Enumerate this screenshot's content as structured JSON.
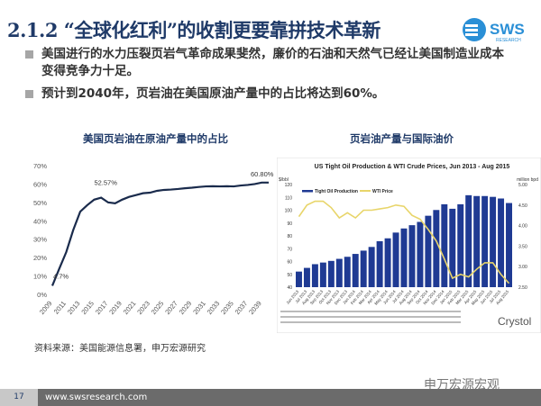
{
  "header": {
    "title": "2.1.2 “全球化红利”的收割更要靠拼技术革新",
    "logo_text": "SWS",
    "logo_sub": "RESEARCH"
  },
  "bullets": [
    "美国进行的水力压裂页岩气革命成果斐然，廉价的石油和天然气已经让美国制造业成本变得竞争力十足。",
    "预计到2040年，页岩油在美国原油产量中的占比将达到60%。"
  ],
  "chart_data": [
    {
      "type": "line",
      "title": "美国页岩油在原油产量中的占比",
      "xlabel": "",
      "ylabel": "",
      "ylim": [
        0,
        70
      ],
      "yticks": [
        "0%",
        "10%",
        "20%",
        "30%",
        "40%",
        "50%",
        "60%",
        "70%"
      ],
      "xticks": [
        "2009",
        "2011",
        "2013",
        "2015",
        "2017",
        "2019",
        "2021",
        "2023",
        "2025",
        "2027",
        "2029",
        "2031",
        "2033",
        "2035",
        "2037",
        "2039"
      ],
      "x": [
        2009,
        2010,
        2011,
        2012,
        2013,
        2014,
        2015,
        2016,
        2017,
        2018,
        2019,
        2020,
        2021,
        2022,
        2023,
        2024,
        2025,
        2026,
        2027,
        2028,
        2029,
        2030,
        2031,
        2032,
        2033,
        2034,
        2035,
        2036,
        2037,
        2038,
        2039,
        2040
      ],
      "values": [
        4.7,
        14,
        23,
        35,
        45,
        48.5,
        51.5,
        52.57,
        50,
        49.5,
        51.5,
        53,
        54,
        55,
        55.3,
        56.3,
        56.8,
        57,
        57.3,
        57.7,
        58,
        58.4,
        58.7,
        58.8,
        58.7,
        58.8,
        58.7,
        59.2,
        59.5,
        60,
        60.8,
        60.8
      ],
      "annotations": [
        "4.7%",
        "52.57%",
        "60.80%"
      ],
      "color": "#1a2b4c"
    },
    {
      "type": "bar+line",
      "title": "US Tight Oil Production & WTI Crude Prices, Jun 2013 - Aug 2015",
      "heading": "页岩油产量与国际油价",
      "ylabel_left": "$/bbl",
      "ylabel_right": "million bpd",
      "ylim_left": [
        40,
        120
      ],
      "ylim_right": [
        2.5,
        5.0
      ],
      "yticks_left": [
        "40",
        "50",
        "60",
        "70",
        "80",
        "90",
        "100",
        "110",
        "120"
      ],
      "yticks_right": [
        "2.50",
        "3.00",
        "3.50",
        "4.00",
        "4.50",
        "5.00"
      ],
      "categories": [
        "Jun 2013",
        "Jul 2013",
        "Aug 2013",
        "Sep 2013",
        "Oct 2013",
        "Nov 2013",
        "Dec 2013",
        "Jan 2014",
        "Feb 2014",
        "Mar 2014",
        "Apr 2014",
        "May 2014",
        "Jun 2014",
        "Jul 2014",
        "Aug 2014",
        "Sep 2014",
        "Oct 2014",
        "Nov 2014",
        "Dec 2014",
        "Jan 2015",
        "Feb 2015",
        "Mar 2015",
        "Apr 2015",
        "May 2015",
        "Jun 2015",
        "Jul 2015",
        "Aug 2015"
      ],
      "series": [
        {
          "name": "Tight Oil Production",
          "axis": "right",
          "color": "#1f3a93",
          "values": [
            2.88,
            2.97,
            3.06,
            3.1,
            3.14,
            3.19,
            3.24,
            3.31,
            3.39,
            3.48,
            3.62,
            3.69,
            3.83,
            3.93,
            4.01,
            4.09,
            4.24,
            4.38,
            4.52,
            4.41,
            4.52,
            4.74,
            4.72,
            4.72,
            4.7,
            4.66,
            4.55
          ]
        },
        {
          "name": "WTI Price",
          "axis": "left",
          "color": "#e8d56a",
          "values": [
            95,
            104,
            107,
            107,
            102,
            94,
            98,
            94,
            100,
            100,
            101,
            102,
            104,
            103,
            96,
            93,
            85,
            76,
            62,
            47,
            50,
            48,
            54,
            59,
            59,
            50,
            43
          ]
        }
      ],
      "source_note": "Crystol"
    }
  ],
  "footer": {
    "source": "资料来源：美国能源信息署，申万宏源研究",
    "watermark": "申万宏源宏观",
    "page": "17",
    "url": "www.swsresearch.com"
  }
}
